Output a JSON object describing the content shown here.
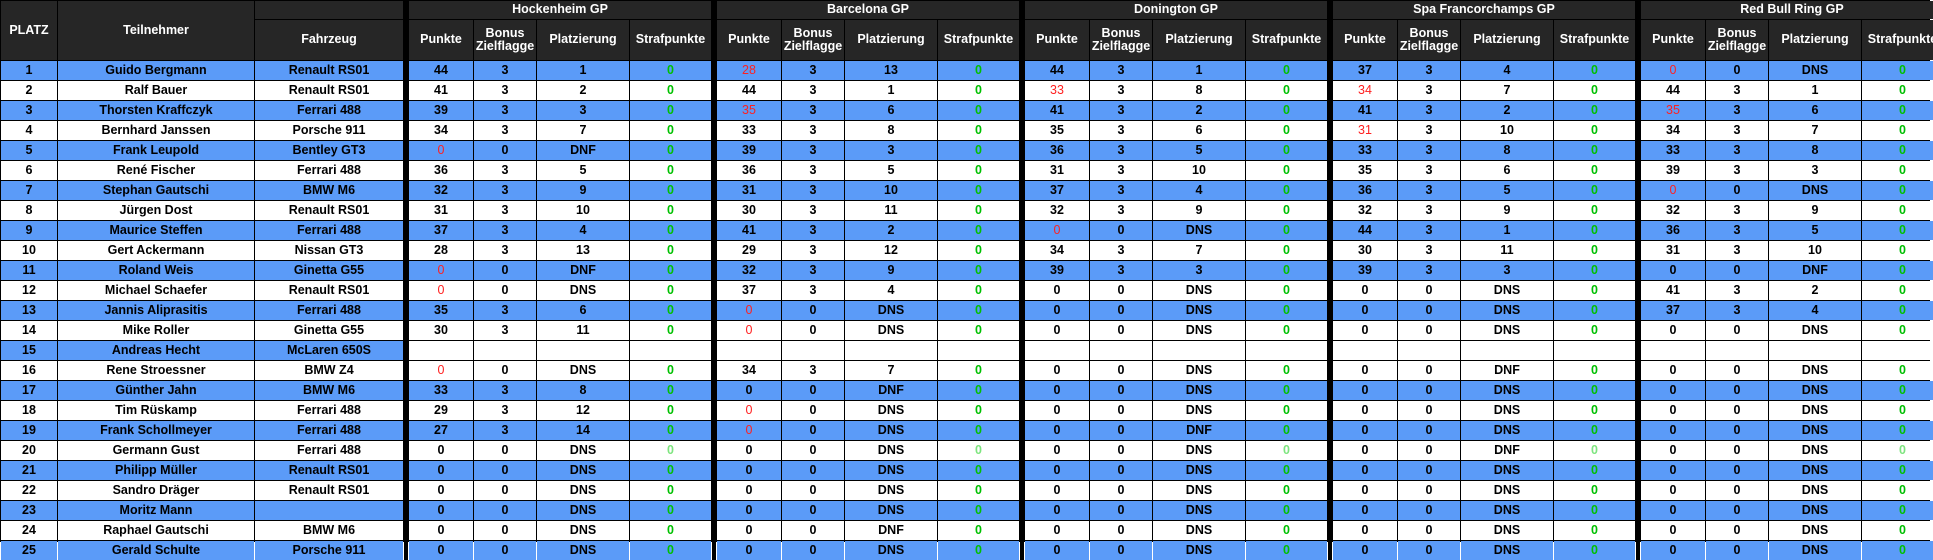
{
  "header": {
    "platz": "PLATZ",
    "teilnehmer": "Teilnehmer",
    "fahrzeug": "Fahrzeug",
    "columns": [
      "Punkte",
      "Bonus Zielflagge",
      "Platzierung",
      "Strafpunkte"
    ]
  },
  "races": [
    "Hockenheim GP",
    "Barcelona GP",
    "Donington GP",
    "Spa Francorchamps GP",
    "Red Bull Ring GP"
  ],
  "colors": {
    "row_blue": "#5b9bf8",
    "row_white": "#ffffff",
    "header_bg": "#262626",
    "penalty_green": "#00c000",
    "red_value": "#ff2020"
  },
  "rows": [
    {
      "platz": "1",
      "name": "Guido Bergmann",
      "car": "Renault RS01",
      "races": [
        [
          "44",
          "3",
          "1",
          "0"
        ],
        [
          "28",
          "3",
          "13",
          "0"
        ],
        [
          "44",
          "3",
          "1",
          "0"
        ],
        [
          "37",
          "3",
          "4",
          "0"
        ],
        [
          "0",
          "0",
          "DNS",
          "0"
        ]
      ],
      "red": [
        [
          1,
          0
        ],
        [
          4,
          0
        ]
      ]
    },
    {
      "platz": "2",
      "name": "Ralf Bauer",
      "car": "Renault RS01",
      "races": [
        [
          "41",
          "3",
          "2",
          "0"
        ],
        [
          "44",
          "3",
          "1",
          "0"
        ],
        [
          "33",
          "3",
          "8",
          "0"
        ],
        [
          "34",
          "3",
          "7",
          "0"
        ],
        [
          "44",
          "3",
          "1",
          "0"
        ]
      ],
      "red": [
        [
          2,
          0
        ],
        [
          3,
          0
        ]
      ]
    },
    {
      "platz": "3",
      "name": "Thorsten Kraffczyk",
      "car": "Ferrari 488",
      "races": [
        [
          "39",
          "3",
          "3",
          "0"
        ],
        [
          "35",
          "3",
          "6",
          "0"
        ],
        [
          "41",
          "3",
          "2",
          "0"
        ],
        [
          "41",
          "3",
          "2",
          "0"
        ],
        [
          "35",
          "3",
          "6",
          "0"
        ]
      ],
      "red": [
        [
          1,
          0
        ],
        [
          4,
          0
        ]
      ]
    },
    {
      "platz": "4",
      "name": "Bernhard Janssen",
      "car": "Porsche 911",
      "races": [
        [
          "34",
          "3",
          "7",
          "0"
        ],
        [
          "33",
          "3",
          "8",
          "0"
        ],
        [
          "35",
          "3",
          "6",
          "0"
        ],
        [
          "31",
          "3",
          "10",
          "0"
        ],
        [
          "34",
          "3",
          "7",
          "0"
        ]
      ],
      "red": [
        [
          3,
          0
        ]
      ]
    },
    {
      "platz": "5",
      "name": "Frank Leupold",
      "car": "Bentley GT3",
      "races": [
        [
          "0",
          "0",
          "DNF",
          "0"
        ],
        [
          "39",
          "3",
          "3",
          "0"
        ],
        [
          "36",
          "3",
          "5",
          "0"
        ],
        [
          "33",
          "3",
          "8",
          "0"
        ],
        [
          "33",
          "3",
          "8",
          "0"
        ]
      ],
      "red": [
        [
          0,
          0
        ]
      ]
    },
    {
      "platz": "6",
      "name": "René Fischer",
      "car": "Ferrari 488",
      "races": [
        [
          "36",
          "3",
          "5",
          "0"
        ],
        [
          "36",
          "3",
          "5",
          "0"
        ],
        [
          "31",
          "3",
          "10",
          "0"
        ],
        [
          "35",
          "3",
          "6",
          "0"
        ],
        [
          "39",
          "3",
          "3",
          "0"
        ]
      ],
      "red": []
    },
    {
      "platz": "7",
      "name": "Stephan Gautschi",
      "car": "BMW M6",
      "races": [
        [
          "32",
          "3",
          "9",
          "0"
        ],
        [
          "31",
          "3",
          "10",
          "0"
        ],
        [
          "37",
          "3",
          "4",
          "0"
        ],
        [
          "36",
          "3",
          "5",
          "0"
        ],
        [
          "0",
          "0",
          "DNS",
          "0"
        ]
      ],
      "red": [
        [
          4,
          0
        ]
      ]
    },
    {
      "platz": "8",
      "name": "Jürgen Dost",
      "car": "Renault RS01",
      "races": [
        [
          "31",
          "3",
          "10",
          "0"
        ],
        [
          "30",
          "3",
          "11",
          "0"
        ],
        [
          "32",
          "3",
          "9",
          "0"
        ],
        [
          "32",
          "3",
          "9",
          "0"
        ],
        [
          "32",
          "3",
          "9",
          "0"
        ]
      ],
      "red": []
    },
    {
      "platz": "9",
      "name": "Maurice Steffen",
      "car": "Ferrari 488",
      "races": [
        [
          "37",
          "3",
          "4",
          "0"
        ],
        [
          "41",
          "3",
          "2",
          "0"
        ],
        [
          "0",
          "0",
          "DNS",
          "0"
        ],
        [
          "44",
          "3",
          "1",
          "0"
        ],
        [
          "36",
          "3",
          "5",
          "0"
        ]
      ],
      "red": [
        [
          2,
          0
        ]
      ]
    },
    {
      "platz": "10",
      "name": "Gert Ackermann",
      "car": "Nissan GT3",
      "races": [
        [
          "28",
          "3",
          "13",
          "0"
        ],
        [
          "29",
          "3",
          "12",
          "0"
        ],
        [
          "34",
          "3",
          "7",
          "0"
        ],
        [
          "30",
          "3",
          "11",
          "0"
        ],
        [
          "31",
          "3",
          "10",
          "0"
        ]
      ],
      "red": []
    },
    {
      "platz": "11",
      "name": "Roland Weis",
      "car": "Ginetta G55",
      "races": [
        [
          "0",
          "0",
          "DNF",
          "0"
        ],
        [
          "32",
          "3",
          "9",
          "0"
        ],
        [
          "39",
          "3",
          "3",
          "0"
        ],
        [
          "39",
          "3",
          "3",
          "0"
        ],
        [
          "0",
          "0",
          "DNF",
          "0"
        ]
      ],
      "red": [
        [
          0,
          0
        ]
      ]
    },
    {
      "platz": "12",
      "name": "Michael Schaefer",
      "car": "Renault RS01",
      "races": [
        [
          "0",
          "0",
          "DNS",
          "0"
        ],
        [
          "37",
          "3",
          "4",
          "0"
        ],
        [
          "0",
          "0",
          "DNS",
          "0"
        ],
        [
          "0",
          "0",
          "DNS",
          "0"
        ],
        [
          "41",
          "3",
          "2",
          "0"
        ]
      ],
      "red": [
        [
          0,
          0
        ]
      ]
    },
    {
      "platz": "13",
      "name": "Jannis Aliprasitis",
      "car": "Ferrari 488",
      "races": [
        [
          "35",
          "3",
          "6",
          "0"
        ],
        [
          "0",
          "0",
          "DNS",
          "0"
        ],
        [
          "0",
          "0",
          "DNS",
          "0"
        ],
        [
          "0",
          "0",
          "DNS",
          "0"
        ],
        [
          "37",
          "3",
          "4",
          "0"
        ]
      ],
      "red": [
        [
          1,
          0
        ]
      ]
    },
    {
      "platz": "14",
      "name": "Mike Roller",
      "car": "Ginetta G55",
      "races": [
        [
          "30",
          "3",
          "11",
          "0"
        ],
        [
          "0",
          "0",
          "DNS",
          "0"
        ],
        [
          "0",
          "0",
          "DNS",
          "0"
        ],
        [
          "0",
          "0",
          "DNS",
          "0"
        ],
        [
          "0",
          "0",
          "DNS",
          "0"
        ]
      ],
      "red": [
        [
          1,
          0
        ]
      ]
    },
    {
      "platz": "15",
      "name": "Andreas Hecht",
      "car": "McLaren 650S",
      "races": [
        [
          "",
          "",
          "",
          ""
        ],
        [
          "",
          "",
          "",
          ""
        ],
        [
          "",
          "",
          "",
          ""
        ],
        [
          "",
          "",
          "",
          ""
        ],
        [
          "",
          "",
          "",
          ""
        ]
      ],
      "red": []
    },
    {
      "platz": "16",
      "name": "Rene Stroessner",
      "car": "BMW Z4",
      "races": [
        [
          "0",
          "0",
          "DNS",
          "0"
        ],
        [
          "34",
          "3",
          "7",
          "0"
        ],
        [
          "0",
          "0",
          "DNS",
          "0"
        ],
        [
          "0",
          "0",
          "DNF",
          "0"
        ],
        [
          "0",
          "0",
          "DNS",
          "0"
        ]
      ],
      "red": [
        [
          0,
          0
        ]
      ]
    },
    {
      "platz": "17",
      "name": "Günther Jahn",
      "car": "BMW M6",
      "races": [
        [
          "33",
          "3",
          "8",
          "0"
        ],
        [
          "0",
          "0",
          "DNF",
          "0"
        ],
        [
          "0",
          "0",
          "DNS",
          "0"
        ],
        [
          "0",
          "0",
          "DNS",
          "0"
        ],
        [
          "0",
          "0",
          "DNS",
          "0"
        ]
      ],
      "red": []
    },
    {
      "platz": "18",
      "name": "Tim Rüskamp",
      "car": "Ferrari 488",
      "races": [
        [
          "29",
          "3",
          "12",
          "0"
        ],
        [
          "0",
          "0",
          "DNS",
          "0"
        ],
        [
          "0",
          "0",
          "DNS",
          "0"
        ],
        [
          "0",
          "0",
          "DNS",
          "0"
        ],
        [
          "0",
          "0",
          "DNS",
          "0"
        ]
      ],
      "red": [
        [
          1,
          0
        ]
      ]
    },
    {
      "platz": "19",
      "name": "Frank Schollmeyer",
      "car": "Ferrari 488",
      "races": [
        [
          "27",
          "3",
          "14",
          "0"
        ],
        [
          "0",
          "0",
          "DNS",
          "0"
        ],
        [
          "0",
          "0",
          "DNF",
          "0"
        ],
        [
          "0",
          "0",
          "DNS",
          "0"
        ],
        [
          "0",
          "0",
          "DNS",
          "0"
        ]
      ],
      "red": [
        [
          1,
          0
        ]
      ]
    },
    {
      "platz": "20",
      "name": "Germann Gust",
      "car": "Ferrari 488",
      "races": [
        [
          "0",
          "0",
          "DNS",
          "0"
        ],
        [
          "0",
          "0",
          "DNS",
          "0"
        ],
        [
          "0",
          "0",
          "DNS",
          "0"
        ],
        [
          "0",
          "0",
          "DNF",
          "0"
        ],
        [
          "0",
          "0",
          "DNS",
          "0"
        ]
      ],
      "red": []
    },
    {
      "platz": "21",
      "name": "Philipp Müller",
      "car": "Renault RS01",
      "races": [
        [
          "0",
          "0",
          "DNS",
          "0"
        ],
        [
          "0",
          "0",
          "DNS",
          "0"
        ],
        [
          "0",
          "0",
          "DNS",
          "0"
        ],
        [
          "0",
          "0",
          "DNS",
          "0"
        ],
        [
          "0",
          "0",
          "DNS",
          "0"
        ]
      ],
      "red": []
    },
    {
      "platz": "22",
      "name": "Sandro Dräger",
      "car": "Renault RS01",
      "races": [
        [
          "0",
          "0",
          "DNS",
          "0"
        ],
        [
          "0",
          "0",
          "DNS",
          "0"
        ],
        [
          "0",
          "0",
          "DNS",
          "0"
        ],
        [
          "0",
          "0",
          "DNS",
          "0"
        ],
        [
          "0",
          "0",
          "DNS",
          "0"
        ]
      ],
      "red": []
    },
    {
      "platz": "23",
      "name": "Moritz Mann",
      "car": "",
      "races": [
        [
          "0",
          "0",
          "DNS",
          "0"
        ],
        [
          "0",
          "0",
          "DNS",
          "0"
        ],
        [
          "0",
          "0",
          "DNS",
          "0"
        ],
        [
          "0",
          "0",
          "DNS",
          "0"
        ],
        [
          "0",
          "0",
          "DNS",
          "0"
        ]
      ],
      "red": []
    },
    {
      "platz": "24",
      "name": "Raphael Gautschi",
      "car": "BMW M6",
      "races": [
        [
          "0",
          "0",
          "DNS",
          "0"
        ],
        [
          "0",
          "0",
          "DNF",
          "0"
        ],
        [
          "0",
          "0",
          "DNS",
          "0"
        ],
        [
          "0",
          "0",
          "DNS",
          "0"
        ],
        [
          "0",
          "0",
          "DNS",
          "0"
        ]
      ],
      "red": []
    },
    {
      "platz": "25",
      "name": "Gerald Schulte",
      "car": "Porsche 911",
      "races": [
        [
          "0",
          "0",
          "DNS",
          "0"
        ],
        [
          "0",
          "0",
          "DNS",
          "0"
        ],
        [
          "0",
          "0",
          "DNS",
          "0"
        ],
        [
          "0",
          "0",
          "DNS",
          "0"
        ],
        [
          "0",
          "0",
          "DNS",
          "0"
        ]
      ],
      "red": []
    }
  ]
}
